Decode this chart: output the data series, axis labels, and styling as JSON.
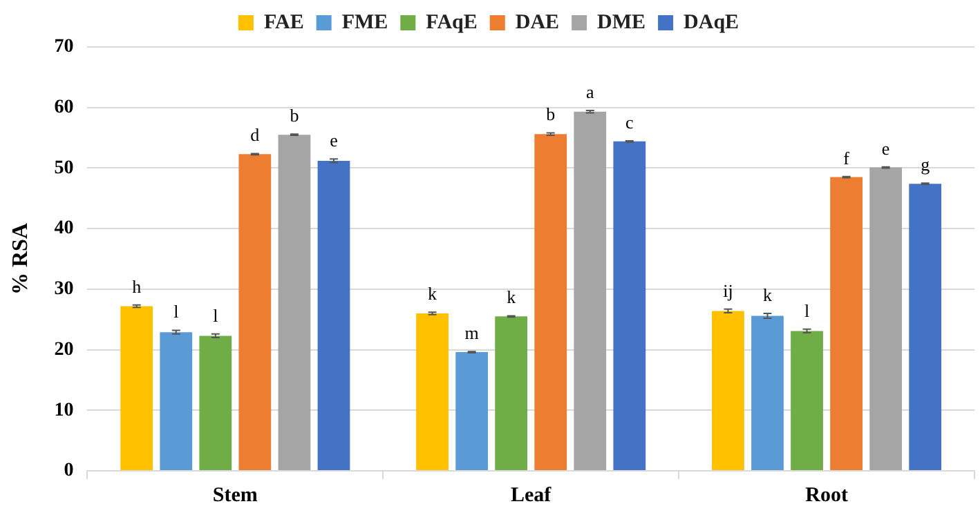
{
  "chart_data": {
    "type": "bar",
    "ylabel": "% RSA",
    "categories": [
      "Stem",
      "Leaf",
      "Root"
    ],
    "series": [
      {
        "name": "FAE",
        "color": "#ffc000",
        "values": [
          27.2,
          26.0,
          26.4
        ],
        "errors": [
          0.2,
          0.2,
          0.3
        ],
        "value_labels": [
          "h",
          "k",
          "ij"
        ]
      },
      {
        "name": "FME",
        "color": "#5b9bd5",
        "values": [
          22.9,
          19.6,
          25.6
        ],
        "errors": [
          0.3,
          0.1,
          0.4
        ],
        "value_labels": [
          "l",
          "m",
          "k"
        ]
      },
      {
        "name": "FAqE",
        "color": "#70ad47",
        "values": [
          22.3,
          25.5,
          23.1
        ],
        "errors": [
          0.3,
          0.1,
          0.3
        ],
        "value_labels": [
          "l",
          "k",
          "l"
        ]
      },
      {
        "name": "DAE",
        "color": "#ed7d31",
        "values": [
          52.3,
          55.6,
          48.5
        ],
        "errors": [
          0.1,
          0.2,
          0.1
        ],
        "value_labels": [
          "d",
          "b",
          "f"
        ]
      },
      {
        "name": "DME",
        "color": "#a5a5a5",
        "values": [
          55.5,
          59.3,
          50.1
        ],
        "errors": [
          0.1,
          0.2,
          0.1
        ],
        "value_labels": [
          "b",
          "a",
          "e"
        ]
      },
      {
        "name": "DAqE",
        "color": "#4472c4",
        "values": [
          51.2,
          54.4,
          47.4
        ],
        "errors": [
          0.3,
          0.1,
          0.1
        ],
        "value_labels": [
          "e",
          "c",
          "g"
        ]
      }
    ],
    "ylim": [
      0,
      70
    ],
    "yticks": [
      0,
      10,
      20,
      30,
      40,
      50,
      60,
      70
    ],
    "grid": "y",
    "legend": "top"
  }
}
